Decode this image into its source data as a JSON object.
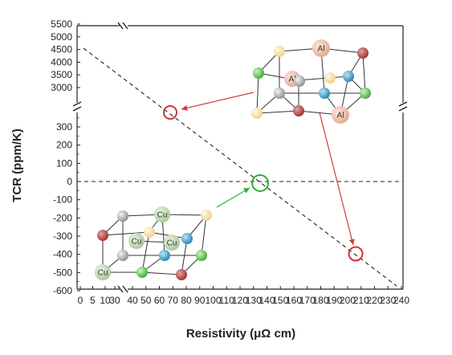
{
  "chart_data": {
    "type": "scatter",
    "xlabel": "Resistivity (μΩ cm)",
    "ylabel": "TCR (ppm/K)",
    "x_ticks": [
      "0",
      "5",
      "10",
      "30",
      "40",
      "50",
      "60",
      "70",
      "80",
      "90",
      "100",
      "110",
      "120",
      "130",
      "140",
      "150",
      "160",
      "170",
      "180",
      "190",
      "200",
      "210",
      "220",
      "230",
      "240"
    ],
    "y_ticks_lower": [
      "-600",
      "-500",
      "-400",
      "-300",
      "-200",
      "-100",
      "0",
      "100",
      "200",
      "300"
    ],
    "y_ticks_upper": [
      "3000",
      "3500",
      "4000",
      "4500",
      "5000",
      "5500"
    ],
    "xlim": [
      0,
      240
    ],
    "ylim_lower": [
      -600,
      400
    ],
    "ylim_upper": [
      2550,
      5500
    ],
    "axis_breaks": {
      "x": [
        10,
        30
      ],
      "y": [
        400,
        2550
      ]
    },
    "points": [
      {
        "x": 70,
        "y": 380,
        "color": "#cc3333"
      },
      {
        "x": 134,
        "y": 0,
        "color": "#33aa33"
      },
      {
        "x": 206,
        "y": -395,
        "color": "#cc3333"
      }
    ],
    "trend_line": {
      "x1": 0,
      "y1": 4300,
      "x2": 240,
      "y2": -590,
      "style": "dashed"
    },
    "zero_line": {
      "y": 0,
      "style": "dashed"
    },
    "insets": [
      {
        "name": "al-crystal",
        "labels": [
          "Al",
          "Al",
          "Al"
        ]
      },
      {
        "name": "cu-crystal",
        "labels": [
          "Cu",
          "Cu",
          "Cu",
          "Cu",
          "Cu"
        ]
      }
    ]
  }
}
